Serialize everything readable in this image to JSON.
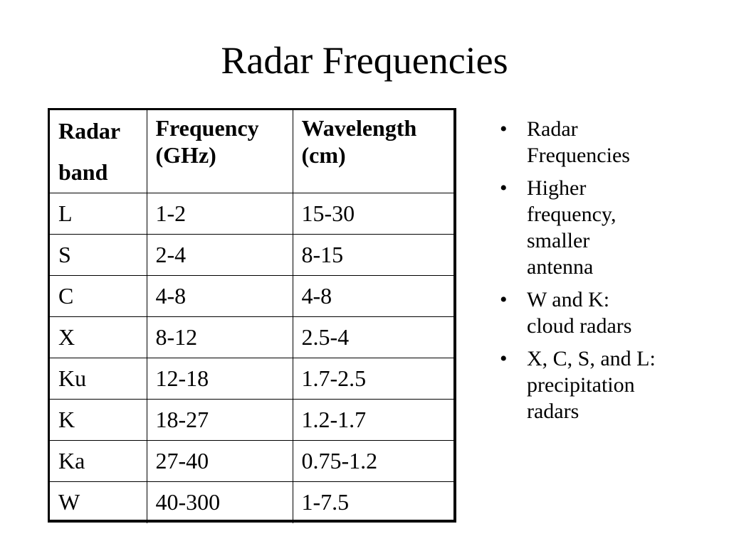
{
  "slide": {
    "title": "Radar Frequencies"
  },
  "table": {
    "headers": {
      "band_line1": "Radar",
      "band_line2": "band",
      "freq_line1": "Frequency",
      "freq_line2": "(GHz)",
      "wave_line1": "Wavelength",
      "wave_line2": "(cm)"
    },
    "rows": [
      {
        "band": "L",
        "frequency": "1-2",
        "wavelength": "15-30"
      },
      {
        "band": "S",
        "frequency": "2-4",
        "wavelength": "8-15"
      },
      {
        "band": "C",
        "frequency": "4-8",
        "wavelength": "4-8"
      },
      {
        "band": "X",
        "frequency": "8-12",
        "wavelength": "2.5-4"
      },
      {
        "band": "Ku",
        "frequency": "12-18",
        "wavelength": "1.7-2.5"
      },
      {
        "band": "K",
        "frequency": "18-27",
        "wavelength": "1.2-1.7"
      },
      {
        "band": "Ka",
        "frequency": "27-40",
        "wavelength": "0.75-1.2"
      },
      {
        "band": "W",
        "frequency": "40-300",
        "wavelength": "1-7.5"
      }
    ]
  },
  "bullets": {
    "marker": "•",
    "items": [
      {
        "lines": [
          "Radar",
          "Frequencies"
        ]
      },
      {
        "lines": [
          "Higher",
          "frequency,",
          "smaller",
          "antenna"
        ]
      },
      {
        "lines": [
          "W and K:",
          "cloud radars"
        ]
      },
      {
        "lines": [
          "X, C, S, and L:",
          "precipitation",
          "radars"
        ]
      }
    ]
  }
}
